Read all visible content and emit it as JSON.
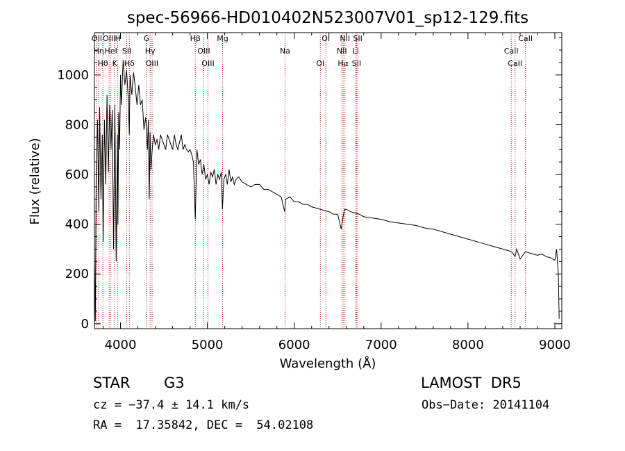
{
  "chart_data": {
    "type": "line",
    "title": "spec-56966-HD010402N523007V01_sp12-129.fits",
    "xlabel": "Wavelength (Å)",
    "ylabel": "Flux (relative)",
    "xlim": [
      3700,
      9080
    ],
    "ylim": [
      -20,
      1170
    ],
    "xticks": [
      4000,
      5000,
      6000,
      7000,
      8000,
      9000
    ],
    "yticks": [
      0,
      200,
      400,
      600,
      800,
      1000
    ],
    "series": [
      {
        "x": [
          3700,
          3710,
          3720,
          3735,
          3750,
          3760,
          3775,
          3790,
          3800,
          3815,
          3830,
          3845,
          3860,
          3875,
          3890,
          3905,
          3920,
          3935,
          3950,
          3965,
          3970,
          3980,
          3990,
          4000,
          4010,
          4030,
          4050,
          4070,
          4090,
          4101,
          4110,
          4130,
          4150,
          4170,
          4190,
          4210,
          4230,
          4250,
          4270,
          4290,
          4310,
          4320,
          4330,
          4340,
          4350,
          4365,
          4380,
          4400,
          4420,
          4440,
          4460,
          4480,
          4500,
          4520,
          4540,
          4560,
          4580,
          4600,
          4620,
          4640,
          4660,
          4680,
          4700,
          4720,
          4740,
          4760,
          4780,
          4800,
          4820,
          4840,
          4861,
          4880,
          4900,
          4920,
          4940,
          4960,
          4980,
          5000,
          5020,
          5040,
          5060,
          5080,
          5100,
          5120,
          5140,
          5160,
          5173,
          5190,
          5210,
          5230,
          5250,
          5270,
          5290,
          5310,
          5330,
          5360,
          5400,
          5450,
          5500,
          5550,
          5600,
          5650,
          5700,
          5750,
          5800,
          5850,
          5890,
          5900,
          5950,
          6000,
          6050,
          6100,
          6150,
          6200,
          6250,
          6300,
          6350,
          6400,
          6450,
          6500,
          6540,
          6563,
          6580,
          6600,
          6650,
          6700,
          6750,
          6800,
          6900,
          7000,
          7100,
          7200,
          7300,
          7400,
          7500,
          7600,
          7700,
          7800,
          7900,
          8000,
          8100,
          8200,
          8300,
          8400,
          8500,
          8542,
          8560,
          8600,
          8662,
          8700,
          8750,
          8800,
          8850,
          8900,
          8950,
          9000,
          9020,
          9040,
          9050
        ],
        "values": [
          260,
          10,
          600,
          820,
          450,
          870,
          500,
          760,
          330,
          820,
          560,
          920,
          610,
          880,
          700,
          860,
          300,
          880,
          250,
          760,
          400,
          850,
          700,
          1000,
          880,
          1060,
          960,
          1020,
          900,
          760,
          1000,
          920,
          1010,
          950,
          880,
          960,
          880,
          900,
          780,
          830,
          700,
          820,
          500,
          770,
          620,
          700,
          760,
          720,
          740,
          700,
          760,
          740,
          720,
          700,
          760,
          740,
          720,
          700,
          760,
          720,
          700,
          730,
          760,
          700,
          720,
          700,
          690,
          700,
          680,
          650,
          420,
          700,
          640,
          660,
          600,
          640,
          580,
          600,
          560,
          610,
          590,
          620,
          560,
          600,
          580,
          610,
          460,
          580,
          600,
          560,
          620,
          570,
          590,
          560,
          580,
          590,
          570,
          560,
          550,
          560,
          560,
          540,
          540,
          530,
          520,
          510,
          450,
          500,
          510,
          490,
          490,
          480,
          480,
          470,
          465,
          460,
          455,
          450,
          440,
          440,
          380,
          430,
          460,
          460,
          450,
          445,
          440,
          430,
          425,
          420,
          410,
          405,
          400,
          395,
          385,
          380,
          370,
          360,
          350,
          340,
          330,
          320,
          310,
          300,
          290,
          270,
          300,
          260,
          290,
          285,
          280,
          275,
          280,
          270,
          265,
          255,
          300,
          200,
          20
        ]
      }
    ],
    "lines": [
      {
        "wavelength": 3727,
        "label": "OII"
      },
      {
        "wavelength": 3750,
        "label": "Hη"
      },
      {
        "wavelength": 3797,
        "label": "Hθ"
      },
      {
        "wavelength": 3869,
        "label": "OIII"
      },
      {
        "wavelength": 3889,
        "label": "HeI"
      },
      {
        "wavelength": 3934,
        "label": "K"
      },
      {
        "wavelength": 3969,
        "label": "H"
      },
      {
        "wavelength": 4072,
        "label": "SII"
      },
      {
        "wavelength": 4102,
        "label": "Hδ"
      },
      {
        "wavelength": 4300,
        "label": "G"
      },
      {
        "wavelength": 4341,
        "label": "Hγ"
      },
      {
        "wavelength": 4363,
        "label": "OIII"
      },
      {
        "wavelength": 4861,
        "label": "Hβ"
      },
      {
        "wavelength": 4959,
        "label": "OIII"
      },
      {
        "wavelength": 5007,
        "label": "OIII"
      },
      {
        "wavelength": 5175,
        "label": "Mg"
      },
      {
        "wavelength": 5894,
        "label": "Na"
      },
      {
        "wavelength": 6300,
        "label": "OI"
      },
      {
        "wavelength": 6364,
        "label": "OI"
      },
      {
        "wavelength": 6548,
        "label": "NII"
      },
      {
        "wavelength": 6563,
        "label": "Hα"
      },
      {
        "wavelength": 6584,
        "label": "NII"
      },
      {
        "wavelength": 6708,
        "label": "Li"
      },
      {
        "wavelength": 6717,
        "label": "SII"
      },
      {
        "wavelength": 6731,
        "label": "SII"
      },
      {
        "wavelength": 8498,
        "label": "CaII"
      },
      {
        "wavelength": 8542,
        "label": "CaII"
      },
      {
        "wavelength": 8662,
        "label": "CaII"
      }
    ]
  },
  "info": {
    "class": "STAR",
    "subclass": "G3",
    "survey": "LAMOST  DR5",
    "cz": "cz = −37.4 ± 14.1 km/s",
    "obs_date": "Obs−Date: 20141104",
    "coords": "RA =  17.35842, DEC =  54.02108"
  }
}
